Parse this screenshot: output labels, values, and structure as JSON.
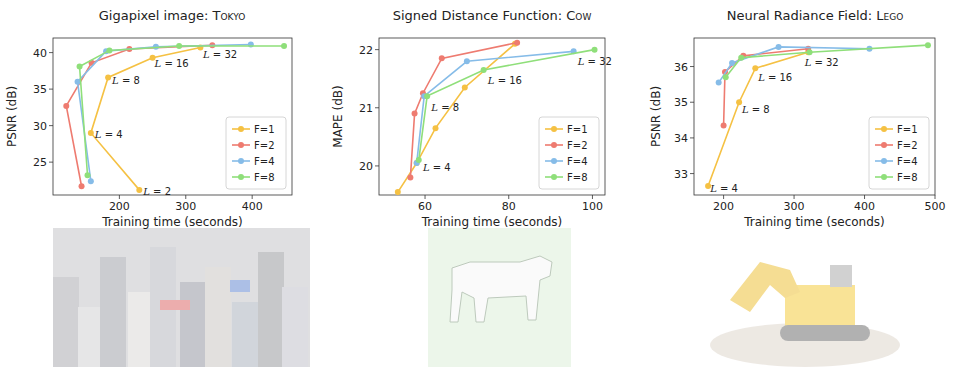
{
  "chart_data": [
    {
      "type": "line",
      "title": "Gigapixel image: Tokyo",
      "x_label": "Training time (seconds)",
      "y_label": "PSNR (dB)",
      "xlim": [
        100,
        460
      ],
      "ylim": [
        20.5,
        42
      ],
      "xticks": [
        200,
        300,
        400
      ],
      "yticks": [
        25,
        30,
        35,
        40
      ],
      "legend": "lower right",
      "marker": "circle",
      "line_style": "solid",
      "series": [
        {
          "name": "F=1",
          "color": "#f5c143",
          "x": [
            230,
            157,
            183,
            250,
            322
          ],
          "values": [
            21.2,
            29.0,
            36.6,
            39.3,
            40.7
          ]
        },
        {
          "name": "F=2",
          "color": "#ee7b70",
          "x": [
            143,
            120,
            158,
            215,
            340
          ],
          "values": [
            21.7,
            32.7,
            38.6,
            40.5,
            41.0
          ]
        },
        {
          "name": "F=4",
          "color": "#86bce8",
          "x": [
            157,
            137,
            180,
            255,
            398
          ],
          "values": [
            22.4,
            36.0,
            40.2,
            40.8,
            41.1
          ]
        },
        {
          "name": "F=8",
          "color": "#8fdf7a",
          "x": [
            152,
            140,
            185,
            290,
            448
          ],
          "values": [
            23.2,
            38.1,
            40.3,
            40.9,
            40.9
          ]
        }
      ],
      "annotations": [
        {
          "text": "L = 2",
          "x": 236,
          "y": 21.0
        },
        {
          "text": "L = 4",
          "x": 163,
          "y": 28.8
        },
        {
          "text": "L = 8",
          "x": 189,
          "y": 36.2
        },
        {
          "text": "L = 16",
          "x": 253,
          "y": 38.6
        },
        {
          "text": "L = 32",
          "x": 326,
          "y": 39.8
        }
      ]
    },
    {
      "type": "line",
      "title": "Signed Distance Function: Cow",
      "x_label": "Training time (seconds)",
      "y_label": "MAPE (dB)",
      "xlim": [
        49,
        103
      ],
      "ylim": [
        19.5,
        22.2
      ],
      "xticks": [
        60,
        80,
        100
      ],
      "yticks": [
        20,
        21,
        22
      ],
      "legend": "lower right",
      "marker": "circle",
      "line_style": "solid",
      "series": [
        {
          "name": "F=1",
          "color": "#f5c143",
          "x": [
            53.5,
            58,
            62.5,
            69.5,
            81.5
          ],
          "values": [
            19.55,
            20.05,
            20.65,
            21.35,
            22.1
          ]
        },
        {
          "name": "F=2",
          "color": "#ee7b70",
          "x": [
            56.5,
            57.5,
            59.5,
            64,
            82
          ],
          "values": [
            19.8,
            20.9,
            21.25,
            21.85,
            22.12
          ]
        },
        {
          "name": "F=4",
          "color": "#86bce8",
          "x": [
            58,
            59.8,
            70,
            95.5
          ],
          "values": [
            20.05,
            21.2,
            21.8,
            21.97
          ]
        },
        {
          "name": "F=8",
          "color": "#8fdf7a",
          "x": [
            58.5,
            60.5,
            74,
            100.5
          ],
          "values": [
            20.1,
            21.2,
            21.65,
            22.0
          ]
        }
      ],
      "annotations": [
        {
          "text": "L = 4",
          "x": 59.5,
          "y": 19.98
        },
        {
          "text": "L = 8",
          "x": 61.5,
          "y": 21.02
        },
        {
          "text": "L = 16",
          "x": 75,
          "y": 21.48
        },
        {
          "text": "L = 32",
          "x": 96.5,
          "y": 21.8
        }
      ]
    },
    {
      "type": "line",
      "title": "Neural Radiance Field: Lego",
      "x_label": "Training time (seconds)",
      "y_label": "PSNR (dB)",
      "xlim": [
        158,
        500
      ],
      "ylim": [
        32.4,
        36.8
      ],
      "xticks": [
        200,
        300,
        400,
        500
      ],
      "yticks": [
        33,
        34,
        35,
        36
      ],
      "legend": "lower right",
      "marker": "circle",
      "line_style": "solid",
      "series": [
        {
          "name": "F=1",
          "color": "#f5c143",
          "x": [
            178,
            222,
            245,
            320
          ],
          "values": [
            32.65,
            35.0,
            35.95,
            36.4
          ]
        },
        {
          "name": "F=2",
          "color": "#ee7b70",
          "x": [
            200,
            202,
            228,
            320
          ],
          "values": [
            34.35,
            35.85,
            36.3,
            36.5
          ]
        },
        {
          "name": "F=4",
          "color": "#86bce8",
          "x": [
            193,
            212,
            278,
            407
          ],
          "values": [
            35.55,
            36.1,
            36.55,
            36.5
          ]
        },
        {
          "name": "F=8",
          "color": "#8fdf7a",
          "x": [
            203,
            225,
            322,
            490
          ],
          "values": [
            35.7,
            36.25,
            36.4,
            36.6
          ]
        }
      ],
      "annotations": [
        {
          "text": "L = 4",
          "x": 181,
          "y": 32.6
        },
        {
          "text": "L = 8",
          "x": 226,
          "y": 34.8
        },
        {
          "text": "L = 16",
          "x": 249,
          "y": 35.72
        },
        {
          "text": "L = 32",
          "x": 315,
          "y": 36.12
        }
      ]
    }
  ]
}
